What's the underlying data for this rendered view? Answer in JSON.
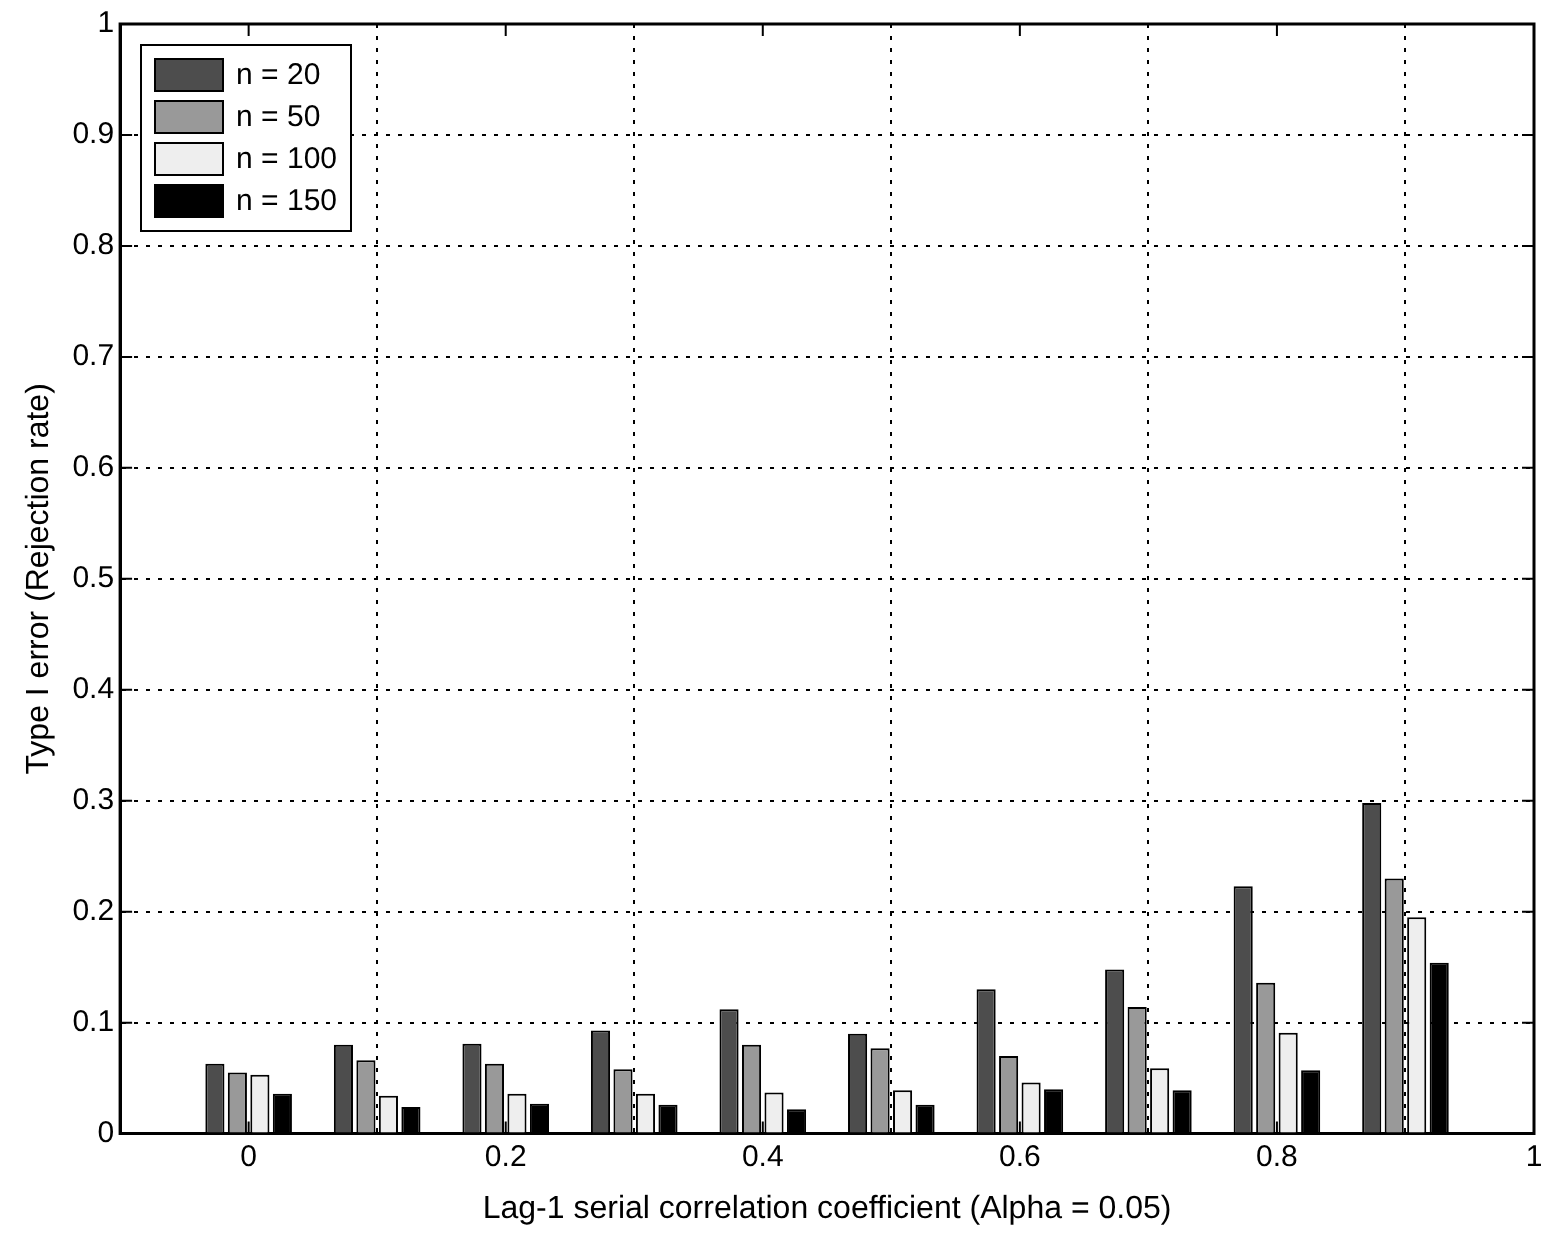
{
  "chart_data": {
    "type": "bar",
    "xlabel": "Lag-1 serial correlation coefficient (Alpha = 0.05)",
    "ylabel": "Type I error (Rejection rate)",
    "x": [
      0,
      0.1,
      0.2,
      0.3,
      0.4,
      0.5,
      0.6,
      0.7,
      0.8,
      0.9
    ],
    "series": [
      {
        "name": "n = 20",
        "color": "#4d4d4d",
        "values": [
          0.063,
          0.08,
          0.081,
          0.093,
          0.112,
          0.09,
          0.13,
          0.148,
          0.223,
          0.298
        ]
      },
      {
        "name": "n = 50",
        "color": "#999999",
        "values": [
          0.055,
          0.066,
          0.063,
          0.058,
          0.08,
          0.077,
          0.07,
          0.114,
          0.136,
          0.23
        ]
      },
      {
        "name": "n = 100",
        "color": "#eeeeee",
        "values": [
          0.053,
          0.034,
          0.036,
          0.036,
          0.037,
          0.039,
          0.046,
          0.059,
          0.091,
          0.195
        ]
      },
      {
        "name": "n = 150",
        "color": "#000000",
        "values": [
          0.036,
          0.024,
          0.027,
          0.026,
          0.022,
          0.026,
          0.04,
          0.039,
          0.057,
          0.154
        ]
      }
    ],
    "xlim": [
      -0.1,
      1
    ],
    "xticks": [
      0,
      0.2,
      0.4,
      0.6,
      0.8,
      1
    ],
    "ylim": [
      0,
      1
    ],
    "yticks": [
      0,
      0.1,
      0.2,
      0.3,
      0.4,
      0.5,
      0.6,
      0.7,
      0.8,
      0.9,
      1
    ],
    "grid": true,
    "legend": "top left"
  }
}
